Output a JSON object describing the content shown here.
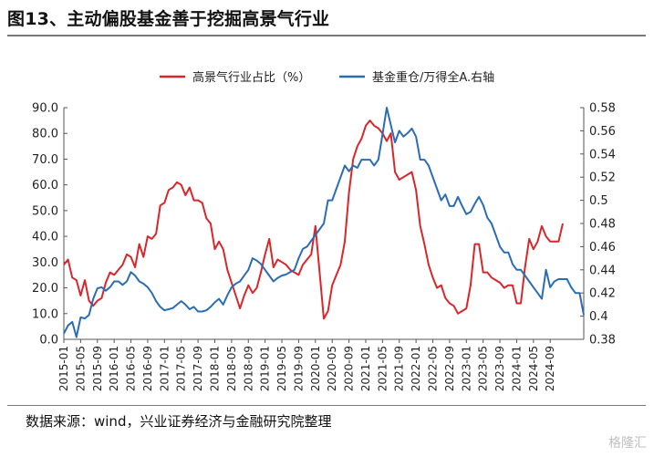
{
  "figure": {
    "title": "图13、主动偏股基金善于挖掘高景气行业",
    "source": "数据来源：wind，兴业证券经济与金融研究院整理",
    "watermark": "格隆汇"
  },
  "chart_data": {
    "type": "line",
    "title": "图13、主动偏股基金善于挖掘高景气行业",
    "legend_position": "top",
    "grid": false,
    "x_ticks": [
      "2015-01",
      "2015-05",
      "2015-09",
      "2016-01",
      "2016-05",
      "2016-09",
      "2017-01",
      "2017-05",
      "2017-09",
      "2018-01",
      "2018-05",
      "2018-09",
      "2019-01",
      "2019-05",
      "2019-09",
      "2020-01",
      "2020-05",
      "2020-09",
      "2021-01",
      "2021-05",
      "2021-09",
      "2022-01",
      "2022-05",
      "2022-09",
      "2023-01",
      "2023-05",
      "2023-09",
      "2024-01",
      "2024-05",
      "2024-09"
    ],
    "x_start": "2015-01",
    "y_left": {
      "min": 0,
      "max": 90,
      "ticks": [
        "0.0",
        "10.0",
        "20.0",
        "30.0",
        "40.0",
        "50.0",
        "60.0",
        "70.0",
        "80.0",
        "90.0"
      ]
    },
    "y_right": {
      "min": 0.38,
      "max": 0.58,
      "ticks": [
        "0.38",
        "0.4",
        "0.42",
        "0.44",
        "0.46",
        "0.48",
        "0.5",
        "0.52",
        "0.54",
        "0.56",
        "0.58"
      ]
    },
    "series": [
      {
        "name": "高景气行业占比（%）",
        "axis": "left",
        "color": "#d9262b",
        "values": [
          29,
          31,
          24,
          23,
          17,
          23,
          15,
          13,
          15,
          16,
          22,
          26,
          25,
          27,
          29,
          33,
          32,
          28,
          37,
          32,
          40,
          39,
          41,
          52,
          53,
          58,
          59,
          61,
          60,
          56,
          59,
          54,
          54,
          53,
          47,
          45,
          35,
          38,
          35,
          27,
          22,
          17,
          12,
          17,
          21,
          18,
          20,
          26,
          33,
          39,
          28,
          31,
          30,
          29,
          27,
          26,
          25,
          29,
          31,
          33,
          44,
          26,
          8,
          11,
          21,
          25,
          29,
          38,
          57,
          70,
          75,
          78,
          83,
          85,
          83,
          82,
          80,
          77,
          80,
          65,
          62,
          63,
          64,
          65,
          58,
          44,
          37,
          29,
          24,
          20,
          21,
          16,
          14,
          13,
          10,
          11,
          12,
          21,
          37,
          37,
          26,
          26,
          24,
          23,
          22,
          20,
          21,
          21,
          14,
          14,
          28,
          39,
          35,
          38,
          44,
          40,
          38,
          38,
          38,
          45
        ]
      },
      {
        "name": "基金重仓/万得全A.右轴",
        "axis": "right",
        "color": "#2a6db5",
        "values": [
          0.385,
          0.392,
          0.395,
          0.382,
          0.399,
          0.398,
          0.401,
          0.415,
          0.424,
          0.425,
          0.422,
          0.425,
          0.43,
          0.43,
          0.427,
          0.43,
          0.438,
          0.435,
          0.43,
          0.428,
          0.425,
          0.42,
          0.413,
          0.408,
          0.405,
          0.406,
          0.407,
          0.41,
          0.413,
          0.41,
          0.406,
          0.408,
          0.404,
          0.404,
          0.405,
          0.408,
          0.412,
          0.415,
          0.41,
          0.418,
          0.425,
          0.428,
          0.43,
          0.435,
          0.44,
          0.45,
          0.448,
          0.445,
          0.44,
          0.435,
          0.43,
          0.433,
          0.435,
          0.436,
          0.438,
          0.44,
          0.45,
          0.458,
          0.46,
          0.465,
          0.47,
          0.475,
          0.48,
          0.5,
          0.5,
          0.51,
          0.52,
          0.53,
          0.525,
          0.53,
          0.528,
          0.535,
          0.535,
          0.535,
          0.53,
          0.535,
          0.557,
          0.58,
          0.565,
          0.55,
          0.56,
          0.555,
          0.558,
          0.562,
          0.555,
          0.535,
          0.535,
          0.53,
          0.52,
          0.51,
          0.5,
          0.505,
          0.495,
          0.495,
          0.503,
          0.495,
          0.488,
          0.49,
          0.497,
          0.503,
          0.496,
          0.485,
          0.48,
          0.47,
          0.46,
          0.455,
          0.455,
          0.445,
          0.44,
          0.44,
          0.435,
          0.43,
          0.425,
          0.42,
          0.415,
          0.44,
          0.425,
          0.43,
          0.432,
          0.432,
          0.432,
          0.425,
          0.42,
          0.42,
          0.401
        ]
      }
    ]
  }
}
